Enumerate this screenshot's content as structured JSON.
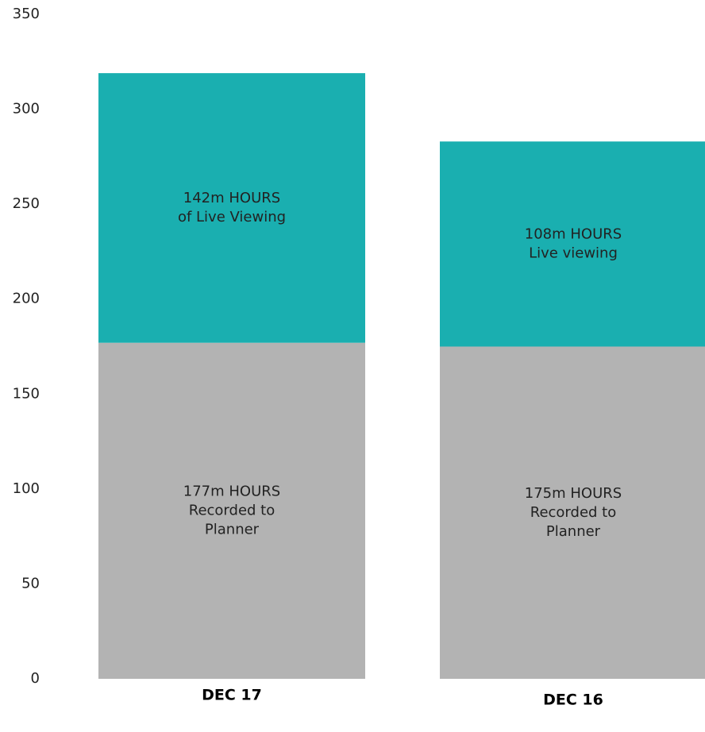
{
  "chart_data": {
    "type": "stacked_bar",
    "categories": [
      "DEC 17",
      "DEC 16"
    ],
    "series": [
      {
        "color": "#b3b3b3",
        "values": [
          177,
          175
        ],
        "value_labels": [
          [
            "177m HOURS",
            "Recorded to",
            "Planner"
          ],
          [
            "175m HOURS",
            "Recorded to",
            "Planner"
          ]
        ]
      },
      {
        "color": "#1aafb0",
        "values": [
          142,
          108
        ],
        "value_labels": [
          [
            "142m HOURS",
            "of Live Viewing"
          ],
          [
            "108m HOURS",
            "Live viewing"
          ]
        ]
      }
    ],
    "ylim": [
      0,
      350
    ],
    "yticks": [
      0,
      50,
      100,
      150,
      200,
      250,
      300,
      350
    ],
    "grid": false
  }
}
